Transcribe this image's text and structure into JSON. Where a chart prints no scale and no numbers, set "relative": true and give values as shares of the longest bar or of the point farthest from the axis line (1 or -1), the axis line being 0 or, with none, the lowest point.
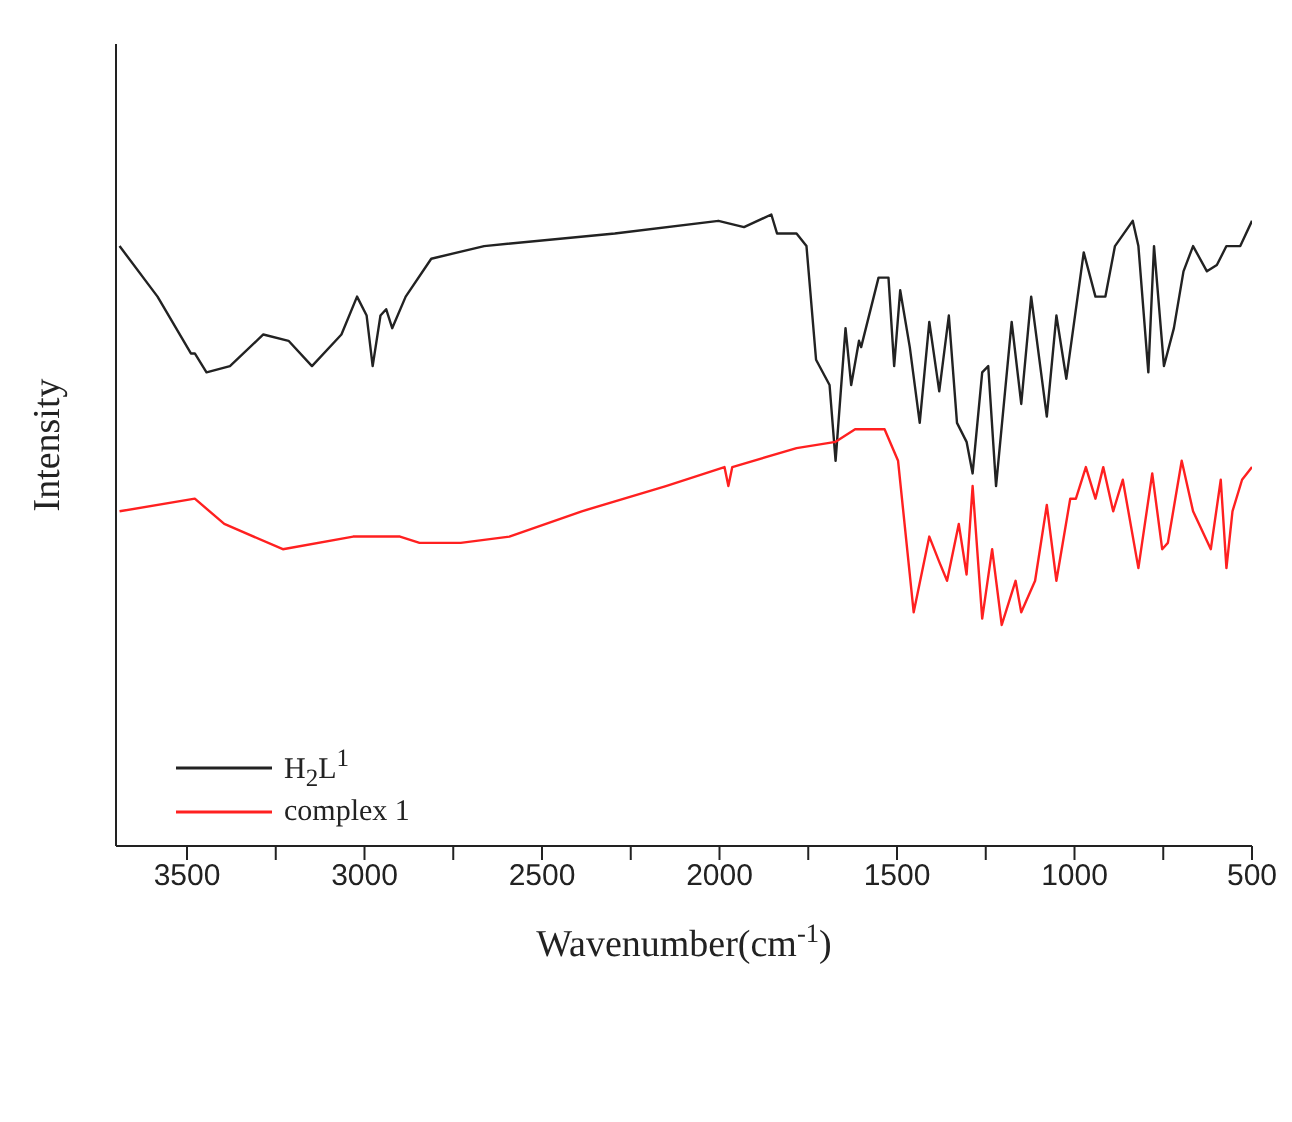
{
  "chart_data": {
    "type": "line",
    "relative": true,
    "xlabel": "Wavenumber(cm$^{-1}$)",
    "ylabel": "Intensity",
    "xlim": [
      3700,
      500
    ],
    "xticks": [
      3500,
      {
        "value": 3250,
        "label": null
      },
      3000,
      {
        "value": 2750,
        "label": null
      },
      2500,
      {
        "value": 2250,
        "label": null
      },
      2000,
      {
        "value": 1750,
        "label": null
      },
      1500,
      {
        "value": 1250,
        "label": null
      },
      1000,
      {
        "value": 750,
        "label": null
      },
      500
    ],
    "legend": "bottom left",
    "grid": false,
    "marker": "none",
    "line_style": "solid",
    "series": [
      {
        "name": "H$_{2}$L$^{1}$",
        "color": "#222222",
        "x": [
          3690,
          3583,
          3489,
          3478,
          3445,
          3379,
          3285,
          3214,
          3148,
          3065,
          3021,
          2994,
          2977,
          2955,
          2939,
          2922,
          2884,
          2812,
          2663,
          2295,
          2003,
          1931,
          1854,
          1838,
          1783,
          1755,
          1728,
          1690,
          1673,
          1645,
          1629,
          1607,
          1601,
          1552,
          1524,
          1508,
          1491,
          1464,
          1436,
          1409,
          1381,
          1354,
          1331,
          1304,
          1287,
          1260,
          1243,
          1221,
          1177,
          1150,
          1122,
          1078,
          1051,
          1023,
          974,
          941,
          913,
          886,
          836,
          820,
          792,
          776,
          748,
          720,
          693,
          666,
          627,
          599,
          572,
          533,
          500
        ],
        "values": [
          0.95,
          0.87,
          0.78,
          0.78,
          0.75,
          0.76,
          0.81,
          0.8,
          0.76,
          0.81,
          0.87,
          0.84,
          0.76,
          0.84,
          0.85,
          0.82,
          0.87,
          0.93,
          0.95,
          0.97,
          0.99,
          0.98,
          1,
          0.97,
          0.97,
          0.95,
          0.77,
          0.73,
          0.61,
          0.82,
          0.73,
          0.8,
          0.79,
          0.9,
          0.9,
          0.76,
          0.88,
          0.79,
          0.67,
          0.83,
          0.72,
          0.84,
          0.67,
          0.64,
          0.59,
          0.75,
          0.76,
          0.57,
          0.83,
          0.7,
          0.87,
          0.68,
          0.84,
          0.74,
          0.94,
          0.87,
          0.87,
          0.95,
          0.99,
          0.95,
          0.75,
          0.95,
          0.76,
          0.82,
          0.91,
          0.95,
          0.91,
          0.92,
          0.95,
          0.95,
          0.99
        ]
      },
      {
        "name": "complex 1",
        "color": "#ff2020",
        "x": [
          3690,
          3478,
          3395,
          3230,
          3032,
          2900,
          2845,
          2729,
          2592,
          2388,
          2151,
          1986,
          1975,
          1964,
          1783,
          1673,
          1618,
          1535,
          1497,
          1453,
          1409,
          1381,
          1359,
          1326,
          1304,
          1287,
          1260,
          1232,
          1205,
          1166,
          1150,
          1111,
          1078,
          1051,
          1012,
          996,
          968,
          941,
          919,
          891,
          864,
          820,
          781,
          753,
          737,
          698,
          666,
          616,
          588,
          572,
          555,
          528,
          500
        ],
        "values": [
          0.53,
          0.55,
          0.51,
          0.47,
          0.49,
          0.49,
          0.48,
          0.48,
          0.49,
          0.53,
          0.57,
          0.6,
          0.57,
          0.6,
          0.63,
          0.64,
          0.66,
          0.66,
          0.61,
          0.37,
          0.49,
          0.45,
          0.42,
          0.51,
          0.43,
          0.57,
          0.36,
          0.47,
          0.35,
          0.42,
          0.37,
          0.42,
          0.54,
          0.42,
          0.55,
          0.55,
          0.6,
          0.55,
          0.6,
          0.53,
          0.58,
          0.44,
          0.59,
          0.47,
          0.48,
          0.61,
          0.53,
          0.47,
          0.58,
          0.44,
          0.53,
          0.58,
          0.6
        ]
      }
    ]
  }
}
